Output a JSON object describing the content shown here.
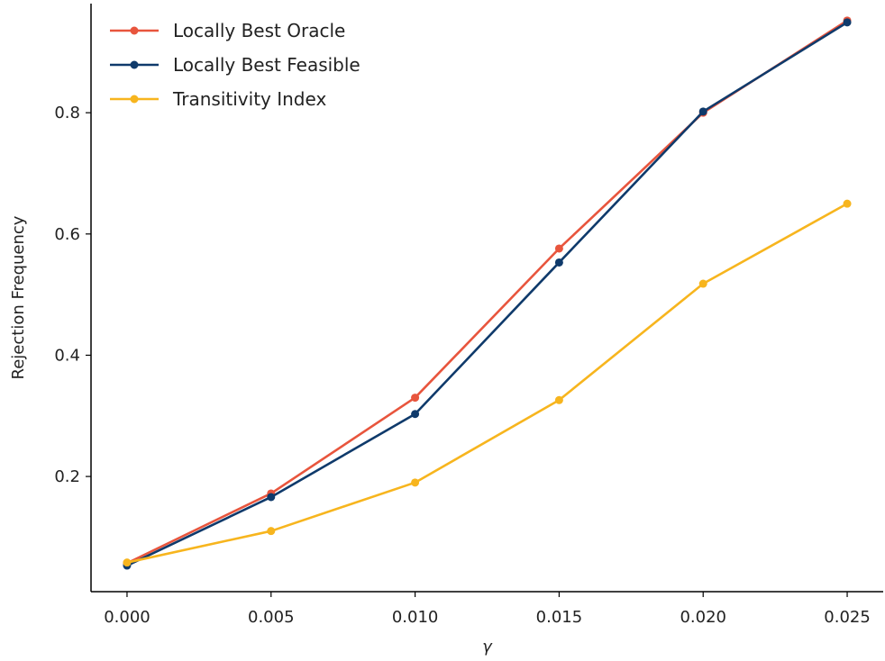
{
  "chart_data": {
    "type": "line",
    "xlabel": "γ",
    "ylabel": "Rejection Frequency",
    "x": [
      0.0,
      0.005,
      0.01,
      0.015,
      0.02,
      0.025
    ],
    "x_tick_labels": [
      "0.000",
      "0.005",
      "0.010",
      "0.015",
      "0.020",
      "0.025"
    ],
    "y_tick_values": [
      0.2,
      0.4,
      0.6,
      0.8
    ],
    "y_tick_labels": [
      "0.2",
      "0.4",
      "0.6",
      "0.8"
    ],
    "xlim": [
      -0.00125,
      0.02625
    ],
    "ylim": [
      0.01,
      0.98
    ],
    "grid": false,
    "legend_position": "top-left",
    "series": [
      {
        "name": "Locally Best Oracle",
        "color": "#e8553d",
        "values": [
          0.057,
          0.172,
          0.33,
          0.576,
          0.8,
          0.952
        ]
      },
      {
        "name": "Locally Best Feasible",
        "color": "#0f3a6b",
        "values": [
          0.053,
          0.166,
          0.303,
          0.553,
          0.802,
          0.949
        ]
      },
      {
        "name": "Transitivity Index",
        "color": "#f7b51e",
        "values": [
          0.058,
          0.11,
          0.19,
          0.326,
          0.518,
          0.65
        ]
      }
    ]
  }
}
